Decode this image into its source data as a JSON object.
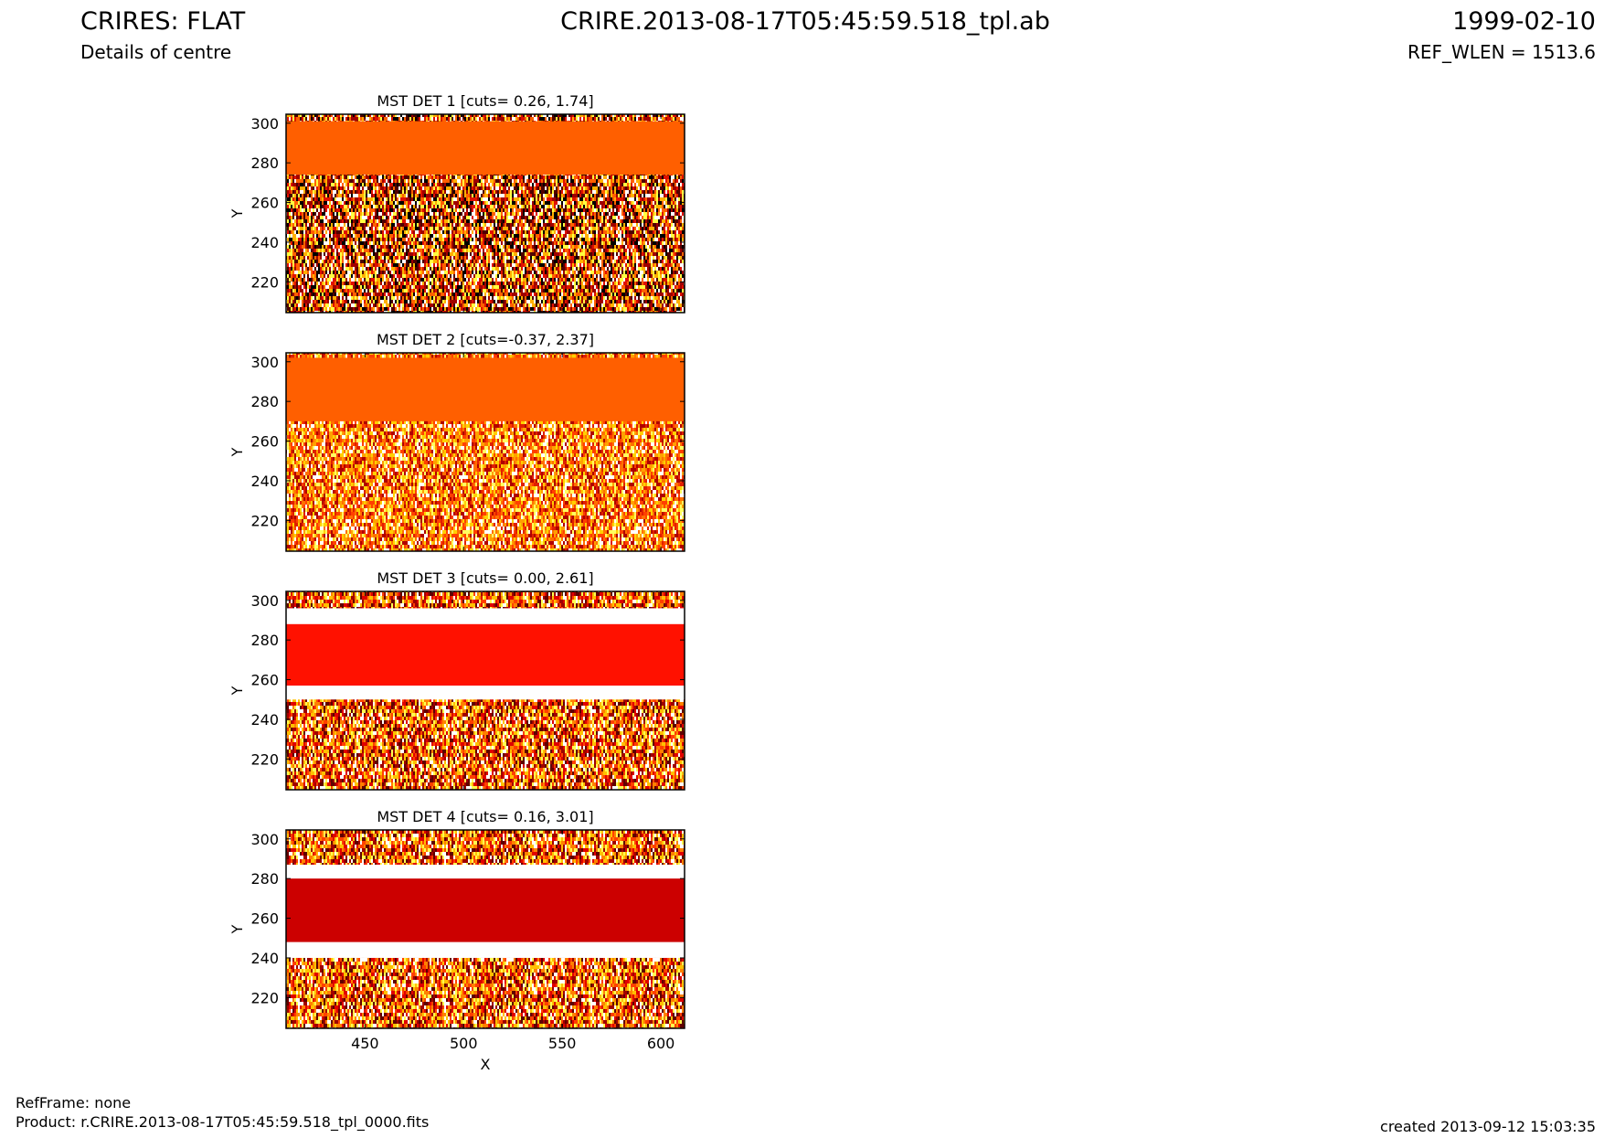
{
  "header": {
    "left_title": "CRIRES: FLAT",
    "subtitle": "Details of centre",
    "center_title": "CRIRE.2013-08-17T05:45:59.518_tpl.ab",
    "date": "1999-02-10",
    "ref_wlen": "REF_WLEN = 1513.6"
  },
  "footer": {
    "ref_frame": "RefFrame: none",
    "product": "Product: r.CRIRE.2013-08-17T05:45:59.518_tpl_0000.fits",
    "created": "created 2013-09-12 15:03:35"
  },
  "chart_data": [
    {
      "type": "image",
      "title": "MST DET 1 [cuts= 0.26, 1.74]",
      "ylabel": "Y",
      "xlim": [
        410,
        612
      ],
      "ylim": [
        204.5,
        304.5
      ],
      "yticks": [
        220,
        240,
        260,
        280,
        300
      ],
      "bands": [
        {
          "y": [
            274,
            301
          ],
          "color": "#ff5f00"
        }
      ],
      "palette": "dark"
    },
    {
      "type": "image",
      "title": "MST DET 2 [cuts=-0.37, 2.37]",
      "ylabel": "Y",
      "xlim": [
        410,
        612
      ],
      "ylim": [
        204.5,
        304.5
      ],
      "yticks": [
        220,
        240,
        260,
        280,
        300
      ],
      "bands": [
        {
          "y": [
            270,
            302
          ],
          "color": "#ff5f00"
        }
      ],
      "palette": "orange"
    },
    {
      "type": "image",
      "title": "MST DET 3 [cuts= 0.00, 2.61]",
      "ylabel": "Y",
      "xlim": [
        410,
        612
      ],
      "ylim": [
        204.5,
        304.5
      ],
      "yticks": [
        220,
        240,
        260,
        280,
        300
      ],
      "bands": [
        {
          "y": [
            250,
            296
          ],
          "color": "#ffffff"
        },
        {
          "y": [
            257,
            288
          ],
          "color": "#ff1100"
        }
      ],
      "palette": "mixed"
    },
    {
      "type": "image",
      "title": "MST DET 4 [cuts= 0.16, 3.01]",
      "ylabel": "Y",
      "xlabel": "X",
      "xlim": [
        410,
        612
      ],
      "ylim": [
        204.5,
        304.5
      ],
      "yticks": [
        220,
        240,
        260,
        280,
        300
      ],
      "xticks": [
        450,
        500,
        550,
        600
      ],
      "bands": [
        {
          "y": [
            240,
            287
          ],
          "color": "#ffffff"
        },
        {
          "y": [
            248,
            280
          ],
          "color": "#cc0000"
        }
      ],
      "palette": "mixed"
    }
  ]
}
